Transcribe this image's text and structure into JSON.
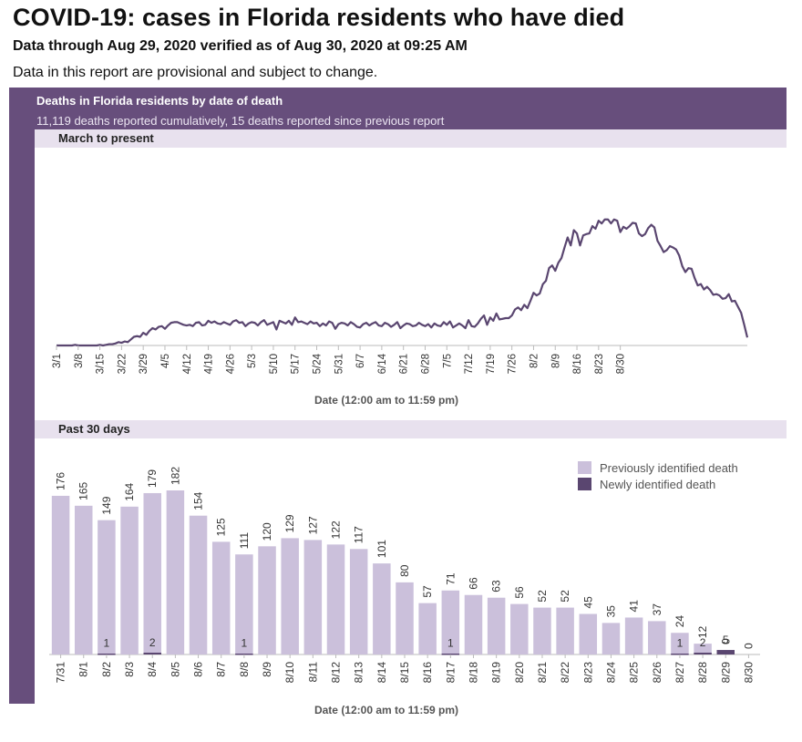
{
  "header": {
    "title": "COVID-19: cases in Florida residents who have died",
    "subtitle": "Data through Aug 29, 2020 verified as of Aug 30, 2020 at 09:25 AM",
    "note": "Data in this report are provisional and subject to change."
  },
  "panel": {
    "title": "Deaths in Florida residents by date of death",
    "summary": "11,119 deaths reported cumulatively, 15 deaths reported since previous report"
  },
  "colors": {
    "panel": "#674e7c",
    "line": "#5a4670",
    "previous": "#cbc0db",
    "newly": "#5a4670",
    "subbar": "#e8e1ee"
  },
  "chart_data": [
    {
      "type": "line",
      "title": "March to present",
      "xlabel": "Date (12:00 am to 11:59 pm)",
      "tick_labels": [
        "3/1",
        "3/8",
        "3/15",
        "3/22",
        "3/29",
        "4/5",
        "4/12",
        "4/19",
        "4/26",
        "5/3",
        "5/10",
        "5/17",
        "5/24",
        "5/31",
        "6/7",
        "6/14",
        "6/21",
        "6/28",
        "7/5",
        "7/12",
        "7/19",
        "7/26",
        "8/2",
        "8/9",
        "8/16",
        "8/23",
        "8/30"
      ],
      "ylim": [
        0,
        200
      ],
      "series": [
        {
          "values": [
            0,
            0,
            0,
            0,
            0,
            0,
            1,
            0,
            0,
            0,
            0,
            0,
            0,
            0,
            1,
            0,
            1,
            2,
            2,
            3,
            5,
            4,
            6,
            5,
            9,
            13,
            14,
            13,
            19,
            16,
            22,
            26,
            24,
            28,
            29,
            25,
            30,
            34,
            35,
            35,
            33,
            31,
            30,
            31,
            29,
            34,
            35,
            30,
            31,
            37,
            34,
            36,
            33,
            32,
            35,
            33,
            31,
            36,
            38,
            34,
            35,
            29,
            33,
            35,
            34,
            30,
            35,
            38,
            31,
            33,
            35,
            24,
            37,
            35,
            33,
            37,
            31,
            42,
            35,
            36,
            34,
            32,
            36,
            33,
            34,
            29,
            33,
            30,
            36,
            34,
            25,
            32,
            34,
            33,
            30,
            35,
            32,
            28,
            27,
            32,
            34,
            30,
            33,
            35,
            30,
            29,
            34,
            32,
            28,
            31,
            35,
            26,
            30,
            33,
            32,
            29,
            30,
            34,
            31,
            29,
            32,
            27,
            33,
            30,
            29,
            35,
            31,
            36,
            27,
            30,
            33,
            30,
            26,
            38,
            29,
            28,
            33,
            40,
            45,
            31,
            42,
            37,
            48,
            39,
            40,
            41,
            41,
            45,
            54,
            57,
            53,
            61,
            56,
            67,
            79,
            75,
            78,
            92,
            97,
            116,
            120,
            112,
            124,
            131,
            147,
            162,
            150,
            173,
            168,
            150,
            165,
            167,
            168,
            179,
            175,
            187,
            183,
            189,
            189,
            183,
            189,
            187,
            170,
            178,
            175,
            179,
            184,
            183,
            168,
            164,
            167,
            176,
            181,
            177,
            157,
            149,
            140,
            143,
            149,
            147,
            144,
            135,
            119,
            110,
            116,
            115,
            101,
            90,
            92,
            84,
            88,
            83,
            76,
            77,
            75,
            70,
            71,
            77,
            66,
            67,
            58,
            49,
            31,
            12
          ]
        }
      ]
    },
    {
      "type": "bar",
      "title": "Past 30 days",
      "xlabel": "Date (12:00 am to 11:59 pm)",
      "categories": [
        "7/31",
        "8/1",
        "8/2",
        "8/3",
        "8/4",
        "8/5",
        "8/6",
        "8/7",
        "8/8",
        "8/9",
        "8/10",
        "8/11",
        "8/12",
        "8/13",
        "8/14",
        "8/15",
        "8/16",
        "8/17",
        "8/18",
        "8/19",
        "8/20",
        "8/21",
        "8/22",
        "8/23",
        "8/24",
        "8/25",
        "8/26",
        "8/27",
        "8/28",
        "8/29",
        "8/30"
      ],
      "ylim": [
        0,
        200
      ],
      "legend": [
        "Previously identified death",
        "Newly identified death"
      ],
      "legend_position": "top-right",
      "series": [
        {
          "name": "Previously identified death",
          "values": [
            176,
            165,
            149,
            164,
            179,
            182,
            154,
            125,
            111,
            120,
            129,
            127,
            122,
            117,
            101,
            80,
            57,
            71,
            66,
            63,
            56,
            52,
            52,
            45,
            35,
            41,
            37,
            24,
            12,
            0,
            0
          ]
        },
        {
          "name": "Newly identified death",
          "values": [
            0,
            0,
            1,
            0,
            2,
            0,
            0,
            0,
            1,
            0,
            0,
            0,
            0,
            0,
            0,
            0,
            0,
            1,
            0,
            0,
            0,
            0,
            0,
            0,
            0,
            0,
            0,
            1,
            2,
            5,
            0
          ]
        }
      ]
    }
  ]
}
